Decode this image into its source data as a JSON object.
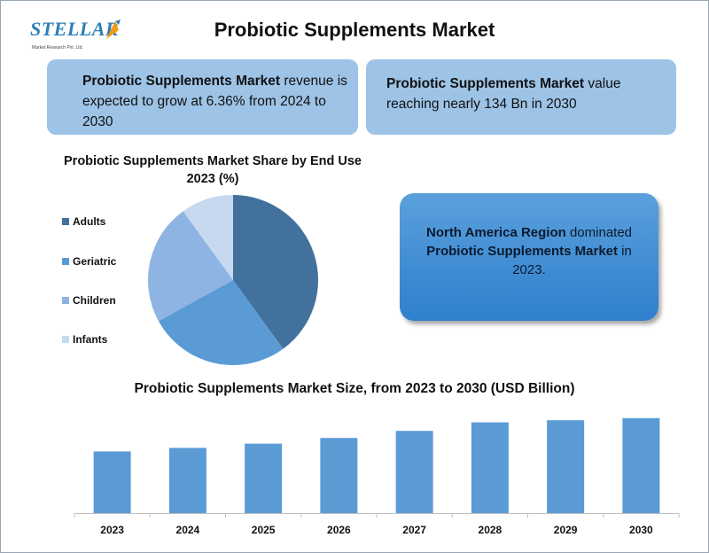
{
  "logo": {
    "word": "STELLAR",
    "sub": "Market Research Pvt. Ltd."
  },
  "title": "Probiotic Supplements Market",
  "box1": {
    "bold": "Probiotic Supplements Market",
    "rest": " revenue is expected to grow at 6.36% from 2024 to 2030"
  },
  "box2": {
    "bold": "Probiotic Supplements Market",
    "rest": " value reaching nearly 134 Bn in 2030"
  },
  "na_box": {
    "bold1": "North America Region",
    "text1": " dominated ",
    "bold2": "Probiotic Supplements Market",
    "text2": " in 2023."
  },
  "colors": {
    "box_light": "#9dc3e6",
    "box_dark": "#2f7fcd",
    "bar": "#5b9bd5",
    "adults": "#41719c",
    "geriatric": "#5b9bd5",
    "children": "#8db4e2",
    "infants": "#c6d9f1"
  },
  "chart_data": [
    {
      "type": "pie",
      "title": "Probiotic Supplements Market Share by End Use 2023 (%)",
      "labels": [
        "Adults",
        "Geriatric",
        "Children",
        "Infants"
      ],
      "values": [
        40,
        27,
        23,
        10
      ],
      "legend": "left"
    },
    {
      "type": "bar",
      "title": "Probiotic Supplements Market Size, from 2023 to 2030 (USD Billion)",
      "categories": [
        "2023",
        "2024",
        "2025",
        "2026",
        "2027",
        "2028",
        "2029",
        "2030"
      ],
      "values": [
        87,
        92,
        98,
        106,
        116,
        128,
        131,
        134
      ],
      "ylim": [
        0,
        140
      ],
      "grid": false
    }
  ]
}
